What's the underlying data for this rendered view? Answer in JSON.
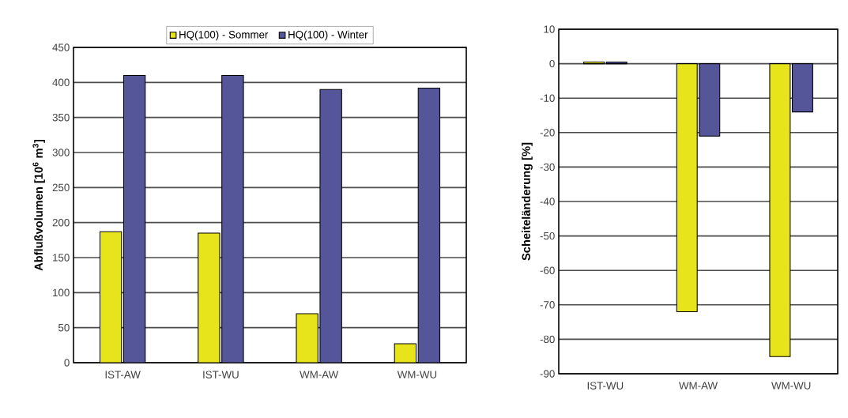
{
  "chart_data": [
    {
      "type": "bar",
      "ylabel": "Abflußvolumen [10$^{6}$ m$^{3}$]",
      "categories": [
        "IST-AW",
        "IST-WU",
        "WM-AW",
        "WM-WU"
      ],
      "series": [
        {
          "name": "HQ(100) - Sommer",
          "color": "#e8e41c",
          "values": [
            187,
            185,
            70,
            27
          ]
        },
        {
          "name": "HQ(100) - Winter",
          "color": "#55559a",
          "values": [
            410,
            410,
            390,
            392
          ]
        }
      ],
      "ylim": [
        0,
        450
      ],
      "yticks": [
        0,
        50,
        100,
        150,
        200,
        250,
        300,
        350,
        400,
        450
      ],
      "grid": "y",
      "legend": "top"
    },
    {
      "type": "bar",
      "ylabel": "Scheiteländerung [%]",
      "categories": [
        "IST-WU",
        "WM-AW",
        "WM-WU"
      ],
      "series": [
        {
          "color": "#e8e41c",
          "values": [
            0.5,
            -72,
            -85
          ]
        },
        {
          "color": "#55559a",
          "values": [
            0.5,
            -21,
            -14
          ]
        }
      ],
      "ylim": [
        -90,
        10
      ],
      "yticks": [
        10,
        0,
        -10,
        -20,
        -30,
        -40,
        -50,
        -60,
        -70,
        -80,
        -90
      ],
      "grid": "y"
    }
  ]
}
